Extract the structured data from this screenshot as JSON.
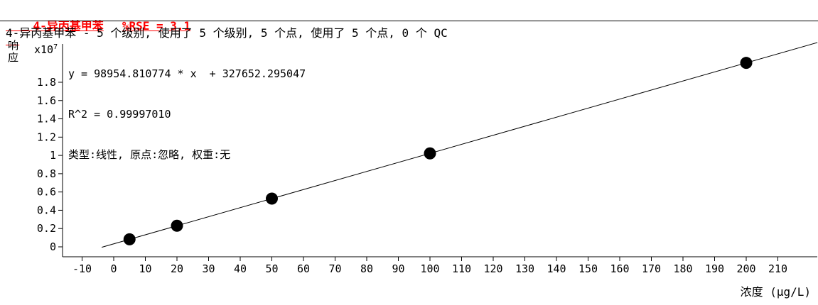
{
  "header": {
    "compound": "4-异丙基甲苯",
    "rse": "%RSE = 3.1"
  },
  "info_line": "4-异丙基甲苯 - 5 个级别, 使用了 5 个级别, 5 个点, 使用了 5 个点, 0 个 QC",
  "chart_data": {
    "type": "scatter",
    "title": "4-异丙基甲苯",
    "ylabel": "响应",
    "xlabel": "浓度 (μg/L)",
    "y_multiplier_base": "x10",
    "y_multiplier_exp": "7",
    "equation": "y = 98954.810774 * x  + 327652.295047",
    "r_squared": "R^2 = 0.99997010",
    "fit_description": "类型:线性, 原点:忽略, 权重:无",
    "slope": 98954.810774,
    "intercept": 327652.295047,
    "x": [
      5,
      20,
      50,
      100,
      200
    ],
    "y": [
      822426,
      2306748,
      5275393,
      10223133,
      20118614
    ],
    "y_1e7": [
      0.0822,
      0.2307,
      0.5275,
      1.0223,
      2.0119
    ],
    "x_ticks": [
      -10,
      0,
      10,
      20,
      30,
      40,
      50,
      60,
      70,
      80,
      90,
      100,
      110,
      120,
      130,
      140,
      150,
      160,
      170,
      180,
      190,
      200,
      210
    ],
    "y_tick_labels": [
      "0",
      "0.2",
      "0.4",
      "0.6",
      "0.8",
      "1",
      "1.2",
      "1.4",
      "1.6",
      "1.8"
    ],
    "xlim": [
      -15,
      222
    ],
    "ylim_1e7": [
      -0.1,
      2.22
    ],
    "line_x_range": [
      -3.8,
      222.5
    ],
    "grid": false,
    "legend": "none",
    "point_color": "#000000",
    "line_color": "#000000",
    "title_color": "#ff0000"
  }
}
